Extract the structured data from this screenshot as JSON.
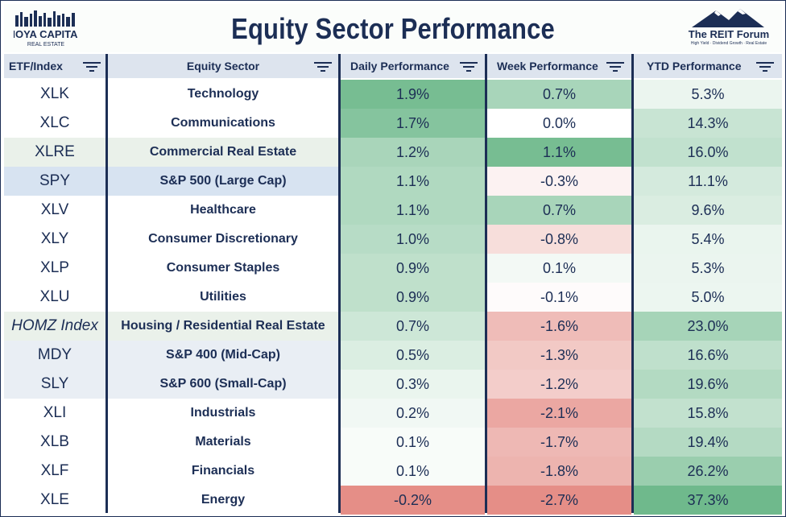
{
  "header": {
    "title": "Equity Sector Performance",
    "logo_left": {
      "line1": "HOYA CAPITAL",
      "line2": "REAL ESTATE"
    },
    "logo_right": {
      "name": "The REIT Forum",
      "tagline": "High Yield · Dividend Growth · Real Estate"
    }
  },
  "chart_data": {
    "type": "table",
    "title": "Equity Sector Performance",
    "columns": [
      "ETF/Index",
      "Equity Sector",
      "Daily Performance",
      "Week Performance",
      "YTD Performance"
    ],
    "rows": [
      {
        "etf": "XLK",
        "sector": "Technology",
        "daily": "1.9%",
        "week": "0.7%",
        "ytd": "5.3%",
        "d": 1.9,
        "w": 0.7,
        "y": 5.3
      },
      {
        "etf": "XLC",
        "sector": "Communications",
        "daily": "1.7%",
        "week": "0.0%",
        "ytd": "14.3%",
        "d": 1.7,
        "w": 0.0,
        "y": 14.3
      },
      {
        "etf": "XLRE",
        "sector": "Commercial Real Estate",
        "daily": "1.2%",
        "week": "1.1%",
        "ytd": "16.0%",
        "d": 1.2,
        "w": 1.1,
        "y": 16.0,
        "shade": "#eaf1ea"
      },
      {
        "etf": "SPY",
        "sector": "S&P 500 (Large Cap)",
        "daily": "1.1%",
        "week": "-0.3%",
        "ytd": "11.1%",
        "d": 1.1,
        "w": -0.3,
        "y": 11.1,
        "shade": "#d7e3f1"
      },
      {
        "etf": "XLV",
        "sector": "Healthcare",
        "daily": "1.1%",
        "week": "0.7%",
        "ytd": "9.6%",
        "d": 1.1,
        "w": 0.7,
        "y": 9.6
      },
      {
        "etf": "XLY",
        "sector": "Consumer Discretionary",
        "daily": "1.0%",
        "week": "-0.8%",
        "ytd": "5.4%",
        "d": 1.0,
        "w": -0.8,
        "y": 5.4
      },
      {
        "etf": "XLP",
        "sector": "Consumer Staples",
        "daily": "0.9%",
        "week": "0.1%",
        "ytd": "5.3%",
        "d": 0.9,
        "w": 0.1,
        "y": 5.3
      },
      {
        "etf": "XLU",
        "sector": "Utilities",
        "daily": "0.9%",
        "week": "-0.1%",
        "ytd": "5.0%",
        "d": 0.9,
        "w": -0.1,
        "y": 5.0
      },
      {
        "etf": "HOMZ Index",
        "sector": "Housing / Residential Real Estate",
        "daily": "0.7%",
        "week": "-1.6%",
        "ytd": "23.0%",
        "d": 0.7,
        "w": -1.6,
        "y": 23.0,
        "shade": "#eaf1ea",
        "italic": true
      },
      {
        "etf": "MDY",
        "sector": "S&P 400 (Mid-Cap)",
        "daily": "0.5%",
        "week": "-1.3%",
        "ytd": "16.6%",
        "d": 0.5,
        "w": -1.3,
        "y": 16.6,
        "shade": "#e9eef4"
      },
      {
        "etf": "SLY",
        "sector": "S&P 600 (Small-Cap)",
        "daily": "0.3%",
        "week": "-1.2%",
        "ytd": "19.6%",
        "d": 0.3,
        "w": -1.2,
        "y": 19.6,
        "shade": "#e9eef4"
      },
      {
        "etf": "XLI",
        "sector": "Industrials",
        "daily": "0.2%",
        "week": "-2.1%",
        "ytd": "15.8%",
        "d": 0.2,
        "w": -2.1,
        "y": 15.8
      },
      {
        "etf": "XLB",
        "sector": "Materials",
        "daily": "0.1%",
        "week": "-1.7%",
        "ytd": "19.4%",
        "d": 0.1,
        "w": -1.7,
        "y": 19.4
      },
      {
        "etf": "XLF",
        "sector": "Financials",
        "daily": "0.1%",
        "week": "-1.8%",
        "ytd": "26.2%",
        "d": 0.1,
        "w": -1.8,
        "y": 26.2
      },
      {
        "etf": "XLE",
        "sector": "Energy",
        "daily": "-0.2%",
        "week": "-2.7%",
        "ytd": "37.3%",
        "d": -0.2,
        "w": -2.7,
        "y": 37.3
      }
    ]
  },
  "colors": {
    "navy": "#1c2e55",
    "header_bg": "#dde4ee",
    "green": "#5fb17f",
    "red": "#e07a72"
  },
  "icons": {
    "filter": "filter-icon",
    "mountain": "mountain-icon"
  }
}
